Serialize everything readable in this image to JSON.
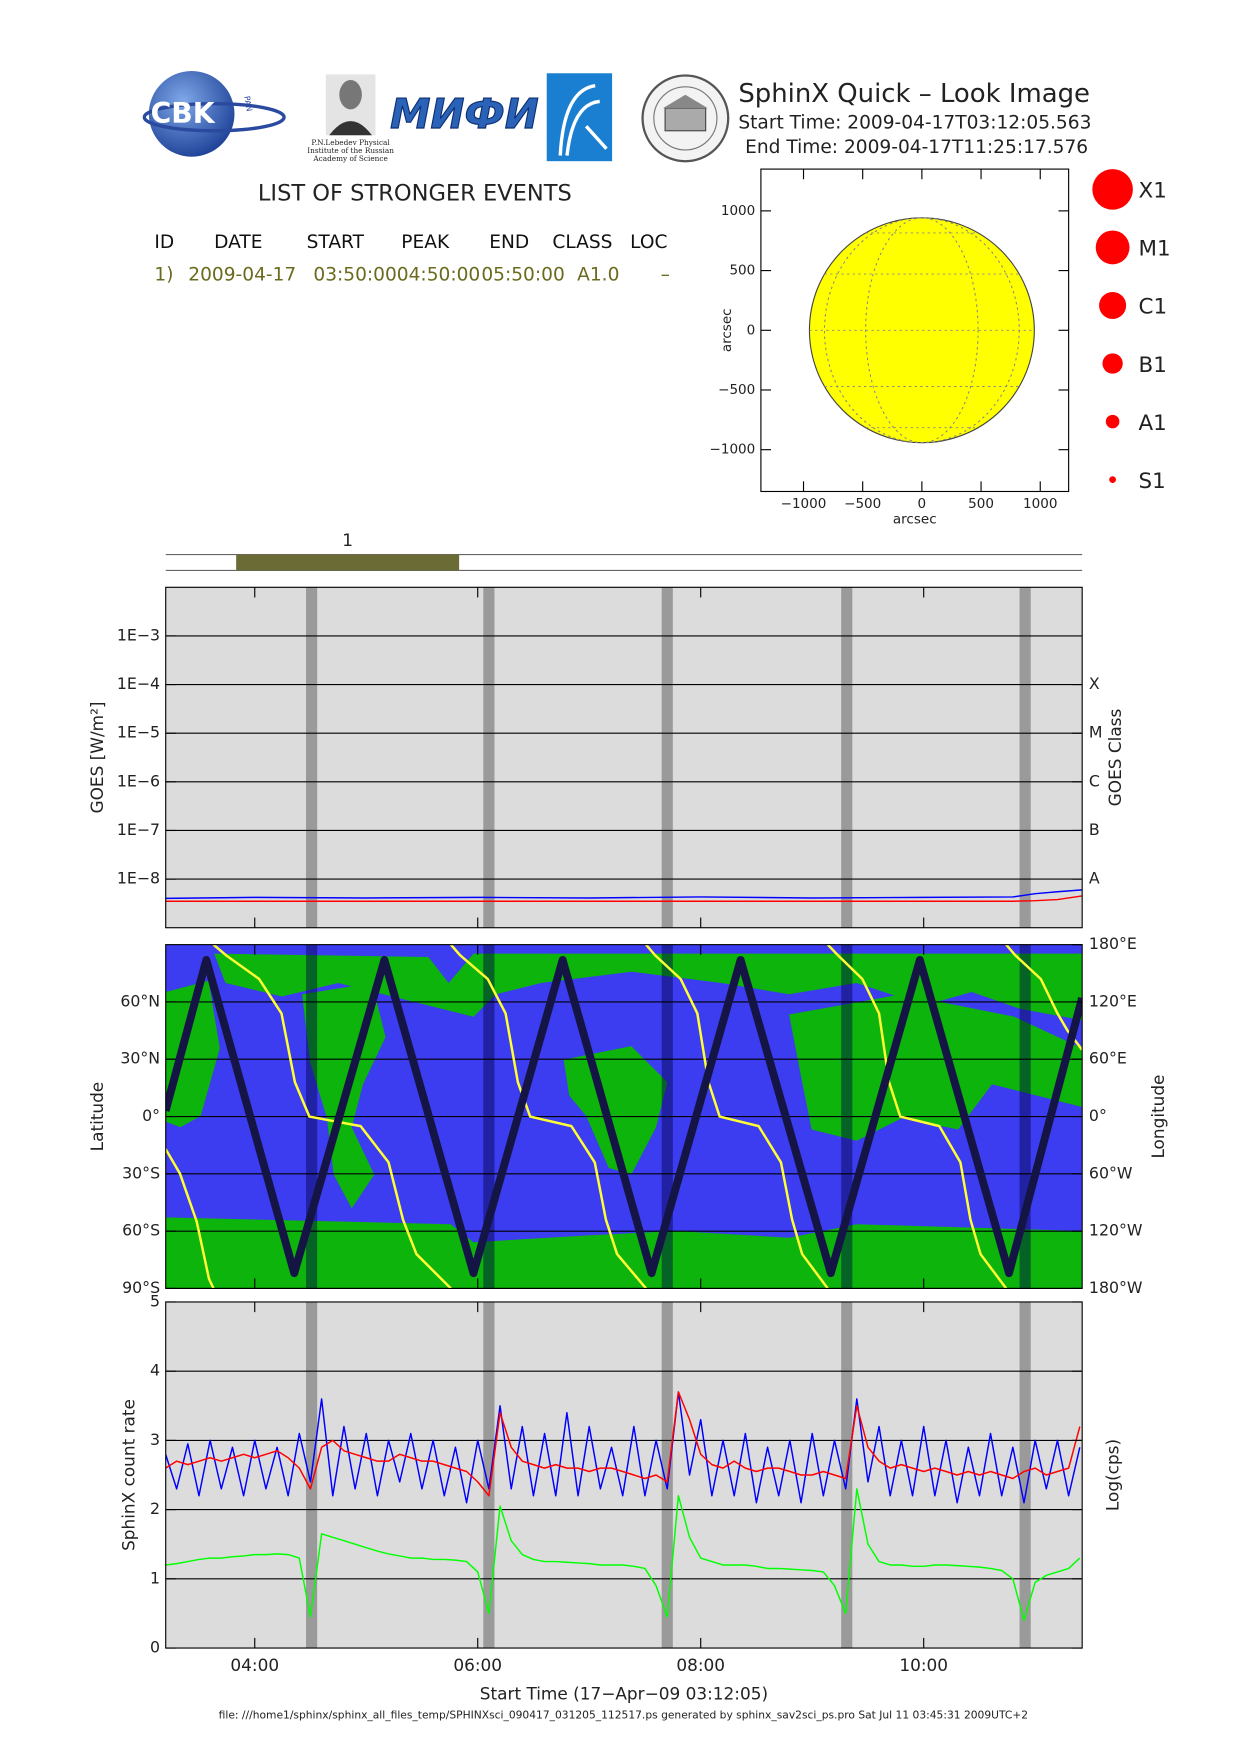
{
  "header": {
    "logo_text": "CBK",
    "logo_sub": "PAN",
    "lebedev_lines": [
      "P.N.Lebedev Physical",
      "Institute of the Russian",
      "Academy of Science"
    ],
    "mifi": "МИФИ",
    "title": "SphinX Quick – Look Image",
    "start_time": "Start Time: 2009-04-17T03:12:05.563",
    "end_time": "End Time: 2009-04-17T11:25:17.576"
  },
  "events": {
    "title": "LIST OF STRONGER EVENTS",
    "columns": [
      "ID",
      "DATE",
      "START",
      "PEAK",
      "END",
      "CLASS",
      "LOC"
    ],
    "rows": [
      [
        "1)",
        "2009-04-17",
        "03:50:00",
        "04:50:00",
        "05:50:00",
        "A1.0",
        "–"
      ]
    ],
    "bar_labels": [
      "1"
    ]
  },
  "class_legend": [
    "X1",
    "M1",
    "C1",
    "B1",
    "A1",
    "S1"
  ],
  "eclipse_intervals": [
    [
      4.46,
      4.56
    ],
    [
      6.05,
      6.15
    ],
    [
      7.65,
      7.75
    ],
    [
      9.26,
      9.36
    ],
    [
      10.86,
      10.96
    ]
  ],
  "chart_data": [
    {
      "type": "disk",
      "xlabel": "arcsec",
      "ylabel": "arcsec",
      "xlim": [
        -1360,
        1240
      ],
      "ylim": [
        -1350,
        1350
      ],
      "xticks": [
        {
          "value": -1000,
          "label": "−1000"
        },
        {
          "value": -500,
          "label": "−500"
        },
        0,
        500,
        1000
      ],
      "yticks": [
        {
          "value": -1000,
          "label": "−1000"
        },
        {
          "value": -500,
          "label": "−500"
        },
        0,
        500,
        1000
      ],
      "radius": 950,
      "color": "#ffff00"
    },
    {
      "type": "line",
      "ylog": true,
      "y2log": true,
      "grid": true,
      "ylabel": "GOES [W/m²]",
      "y2label": "GOES Class",
      "xlim": [
        3.2015,
        11.4215
      ],
      "ylim": [
        1e-09,
        0.01
      ],
      "y2lim": [
        1e-09,
        0.01
      ],
      "yticks": [
        {
          "value": 1e-08,
          "label": "1E−8"
        },
        {
          "value": 1e-07,
          "label": "1E−7"
        },
        {
          "value": 1e-06,
          "label": "1E−6"
        },
        {
          "value": 1e-05,
          "label": "1E−5"
        },
        {
          "value": 0.0001,
          "label": "1E−4"
        },
        {
          "value": 0.001,
          "label": "1E−3"
        }
      ],
      "y2ticks": [
        {
          "value": 1e-08,
          "label": "A"
        },
        {
          "value": 1e-07,
          "label": "B"
        },
        {
          "value": 1e-06,
          "label": "C"
        },
        {
          "value": 1e-05,
          "label": "M"
        },
        {
          "value": 0.0001,
          "label": "X"
        }
      ],
      "series": [
        {
          "color": "#0000ff",
          "x": [
            3.2,
            4.0,
            5.0,
            6.0,
            7.0,
            8.0,
            9.0,
            10.0,
            10.8,
            11.0,
            11.2,
            11.42
          ],
          "values": [
            4e-09,
            4.2e-09,
            4.1e-09,
            4.2e-09,
            4.1e-09,
            4.3e-09,
            4.1e-09,
            4.2e-09,
            4.3e-09,
            5e-09,
            5.5e-09,
            6e-09
          ]
        },
        {
          "color": "#ff0000",
          "x": [
            3.2,
            4.0,
            5.0,
            6.0,
            7.0,
            8.0,
            9.0,
            10.0,
            10.8,
            11.0,
            11.2,
            11.42
          ],
          "values": [
            3.5e-09,
            3.5e-09,
            3.5e-09,
            3.5e-09,
            3.5e-09,
            3.5e-09,
            3.5e-09,
            3.5e-09,
            3.5e-09,
            3.6e-09,
            3.8e-09,
            4.5e-09
          ]
        }
      ]
    },
    {
      "type": "map",
      "grid": true,
      "ylabel": "Latitude",
      "y2label": "Longitude",
      "xlim": [
        3.2015,
        11.4215
      ],
      "ylim": [
        -90,
        90
      ],
      "y2lim": [
        -180,
        180
      ],
      "yticks": [
        {
          "value": -90,
          "label": "90°S"
        },
        {
          "value": -60,
          "label": "60°S"
        },
        {
          "value": -30,
          "label": "30°S"
        },
        {
          "value": 0,
          "label": "0°"
        },
        {
          "value": 30,
          "label": "30°N"
        },
        {
          "value": 60,
          "label": "60°N"
        }
      ],
      "y2ticks": [
        {
          "value": -180,
          "label": "180°W"
        },
        {
          "value": -120,
          "label": "120°W"
        },
        {
          "value": -60,
          "label": "60°W"
        },
        {
          "value": 0,
          "label": "0°"
        },
        {
          "value": 60,
          "label": "60°E"
        },
        {
          "value": 120,
          "label": "120°E"
        },
        {
          "value": 180,
          "label": "180°E"
        }
      ],
      "series": [
        {
          "color": "#ffff33",
          "axis": "y2",
          "x": [
            3.2,
            3.33,
            3.48,
            3.59,
            3.63,
            3.63,
            3.63,
            3.74,
            4.04,
            4.24,
            4.36,
            4.49,
            4.95,
            5.2,
            5.33,
            5.45,
            5.76,
            5.76,
            5.76,
            5.84,
            6.09,
            6.25,
            6.36,
            6.47,
            6.84,
            7.05,
            7.15,
            7.25,
            7.51,
            7.51,
            7.51,
            7.59,
            7.82,
            7.97,
            8.07,
            8.17,
            8.52,
            8.72,
            8.82,
            8.91,
            9.14,
            9.14,
            9.14,
            9.23,
            9.45,
            9.6,
            9.69,
            9.79,
            10.14,
            10.33,
            10.42,
            10.51,
            10.74,
            10.74,
            10.74,
            10.82,
            11.05,
            11.2,
            11.29,
            11.42
          ],
          "values": [
            -34,
            -60,
            -110,
            -170,
            -180,
            null,
            180,
            169,
            144,
            108,
            36,
            0,
            -10,
            -48,
            -108,
            -144,
            -180,
            null,
            180,
            169,
            144,
            108,
            36,
            0,
            -10,
            -48,
            -108,
            -144,
            -180,
            null,
            180,
            169,
            144,
            108,
            36,
            0,
            -10,
            -48,
            -108,
            -144,
            -180,
            null,
            180,
            169,
            144,
            108,
            36,
            0,
            -10,
            -48,
            -108,
            -144,
            -180,
            null,
            180,
            169,
            144,
            108,
            90,
            70
          ]
        },
        {
          "color": "#151545",
          "x": [
            3.2,
            3.565,
            4.354,
            5.163,
            5.962,
            6.761,
            7.559,
            8.358,
            9.167,
            9.966,
            10.765,
            11.42
          ],
          "values": [
            3,
            82,
            -82,
            82,
            -82,
            82,
            -82,
            82,
            -82,
            82,
            -82,
            62
          ]
        }
      ]
    },
    {
      "type": "line",
      "grid": true,
      "ylabel": "SphinX count rate",
      "y2label": "Log(cps)",
      "xlabel": "Start Time (17−Apr−09 03:12:05)",
      "xlim": [
        3.2015,
        11.4215
      ],
      "ylim": [
        0,
        5
      ],
      "xticks": [
        {
          "value": 4,
          "label": "04:00"
        },
        {
          "value": 6,
          "label": "06:00"
        },
        {
          "value": 8,
          "label": "08:00"
        },
        {
          "value": 10,
          "label": "10:00"
        }
      ],
      "yticks": [
        0,
        1,
        2,
        3,
        4,
        5
      ],
      "series": [
        {
          "color": "#00ff00",
          "x": [
            3.2,
            3.3,
            3.4,
            3.5,
            3.6,
            3.7,
            3.8,
            3.9,
            4.0,
            4.1,
            4.2,
            4.3,
            4.4,
            4.5,
            4.6,
            4.7,
            4.8,
            4.9,
            5.0,
            5.1,
            5.2,
            5.3,
            5.4,
            5.5,
            5.6,
            5.7,
            5.8,
            5.9,
            6.0,
            6.1,
            6.2,
            6.3,
            6.4,
            6.5,
            6.6,
            6.7,
            6.8,
            6.9,
            7.0,
            7.1,
            7.2,
            7.3,
            7.4,
            7.5,
            7.6,
            7.7,
            7.8,
            7.9,
            8.0,
            8.1,
            8.2,
            8.3,
            8.4,
            8.5,
            8.6,
            8.7,
            8.8,
            8.9,
            9.0,
            9.1,
            9.2,
            9.3,
            9.4,
            9.5,
            9.6,
            9.7,
            9.8,
            9.9,
            10.0,
            10.1,
            10.2,
            10.3,
            10.4,
            10.5,
            10.6,
            10.7,
            10.8,
            10.9,
            11.0,
            11.1,
            11.2,
            11.3,
            11.4
          ],
          "values": [
            1.2,
            1.22,
            1.25,
            1.28,
            1.3,
            1.3,
            1.32,
            1.33,
            1.35,
            1.35,
            1.36,
            1.35,
            1.3,
            0.45,
            1.65,
            1.6,
            1.55,
            1.5,
            1.45,
            1.4,
            1.36,
            1.33,
            1.3,
            1.3,
            1.28,
            1.28,
            1.27,
            1.25,
            1.1,
            0.5,
            2.05,
            1.55,
            1.35,
            1.28,
            1.25,
            1.25,
            1.24,
            1.23,
            1.22,
            1.2,
            1.2,
            1.2,
            1.18,
            1.15,
            0.9,
            0.45,
            2.2,
            1.6,
            1.3,
            1.25,
            1.2,
            1.2,
            1.2,
            1.18,
            1.15,
            1.15,
            1.14,
            1.13,
            1.12,
            1.1,
            0.9,
            0.5,
            2.3,
            1.5,
            1.25,
            1.2,
            1.2,
            1.18,
            1.18,
            1.2,
            1.2,
            1.19,
            1.18,
            1.17,
            1.15,
            1.12,
            1.0,
            0.4,
            0.95,
            1.05,
            1.1,
            1.15,
            1.3
          ]
        },
        {
          "color": "#0000ff",
          "x": [
            3.2,
            3.3,
            3.4,
            3.5,
            3.6,
            3.7,
            3.8,
            3.9,
            4.0,
            4.1,
            4.2,
            4.3,
            4.4,
            4.5,
            4.6,
            4.7,
            4.8,
            4.9,
            5.0,
            5.1,
            5.2,
            5.3,
            5.4,
            5.5,
            5.6,
            5.7,
            5.8,
            5.9,
            6.0,
            6.1,
            6.2,
            6.3,
            6.4,
            6.5,
            6.6,
            6.7,
            6.8,
            6.9,
            7.0,
            7.1,
            7.2,
            7.3,
            7.4,
            7.5,
            7.6,
            7.7,
            7.8,
            7.9,
            8.0,
            8.1,
            8.2,
            8.3,
            8.4,
            8.5,
            8.6,
            8.7,
            8.8,
            8.9,
            9.0,
            9.1,
            9.2,
            9.3,
            9.4,
            9.5,
            9.6,
            9.7,
            9.8,
            9.9,
            10.0,
            10.1,
            10.2,
            10.3,
            10.4,
            10.5,
            10.6,
            10.7,
            10.8,
            10.9,
            11.0,
            11.1,
            11.2,
            11.3,
            11.4
          ],
          "values": [
            2.8,
            2.3,
            2.95,
            2.2,
            3.0,
            2.3,
            2.9,
            2.2,
            3.0,
            2.3,
            2.9,
            2.2,
            3.1,
            2.4,
            3.6,
            2.2,
            3.2,
            2.3,
            3.1,
            2.2,
            3.0,
            2.4,
            3.1,
            2.3,
            3.0,
            2.2,
            2.9,
            2.1,
            3.0,
            2.3,
            3.5,
            2.3,
            3.2,
            2.2,
            3.1,
            2.2,
            3.4,
            2.2,
            3.2,
            2.3,
            2.9,
            2.2,
            3.2,
            2.2,
            3.0,
            2.3,
            3.7,
            2.5,
            3.3,
            2.2,
            3.0,
            2.2,
            3.1,
            2.1,
            2.9,
            2.2,
            3.0,
            2.1,
            3.1,
            2.2,
            3.0,
            2.3,
            3.6,
            2.4,
            3.2,
            2.2,
            3.0,
            2.2,
            3.2,
            2.2,
            3.0,
            2.1,
            2.9,
            2.2,
            3.1,
            2.2,
            2.9,
            2.1,
            3.0,
            2.3,
            3.0,
            2.2,
            2.9
          ]
        },
        {
          "color": "#ff0000",
          "x": [
            3.2,
            3.3,
            3.4,
            3.5,
            3.6,
            3.7,
            3.8,
            3.9,
            4.0,
            4.1,
            4.2,
            4.3,
            4.4,
            4.5,
            4.6,
            4.7,
            4.8,
            4.9,
            5.0,
            5.1,
            5.2,
            5.3,
            5.4,
            5.5,
            5.6,
            5.7,
            5.8,
            5.9,
            6.0,
            6.1,
            6.2,
            6.3,
            6.4,
            6.5,
            6.6,
            6.7,
            6.8,
            6.9,
            7.0,
            7.1,
            7.2,
            7.3,
            7.4,
            7.5,
            7.6,
            7.7,
            7.8,
            7.9,
            8.0,
            8.1,
            8.2,
            8.3,
            8.4,
            8.5,
            8.6,
            8.7,
            8.8,
            8.9,
            9.0,
            9.1,
            9.2,
            9.3,
            9.4,
            9.5,
            9.6,
            9.7,
            9.8,
            9.9,
            10.0,
            10.1,
            10.2,
            10.3,
            10.4,
            10.5,
            10.6,
            10.7,
            10.8,
            10.9,
            11.0,
            11.1,
            11.2,
            11.3,
            11.4
          ],
          "values": [
            2.6,
            2.7,
            2.65,
            2.7,
            2.75,
            2.7,
            2.75,
            2.8,
            2.75,
            2.8,
            2.85,
            2.75,
            2.6,
            2.3,
            2.9,
            3.0,
            2.85,
            2.8,
            2.75,
            2.7,
            2.7,
            2.8,
            2.75,
            2.7,
            2.7,
            2.65,
            2.6,
            2.55,
            2.4,
            2.2,
            3.4,
            2.9,
            2.7,
            2.65,
            2.6,
            2.65,
            2.6,
            2.6,
            2.55,
            2.6,
            2.6,
            2.55,
            2.5,
            2.45,
            2.5,
            2.4,
            3.7,
            3.3,
            2.8,
            2.65,
            2.6,
            2.7,
            2.6,
            2.55,
            2.6,
            2.6,
            2.55,
            2.5,
            2.5,
            2.55,
            2.5,
            2.45,
            3.5,
            2.9,
            2.7,
            2.6,
            2.65,
            2.6,
            2.55,
            2.6,
            2.55,
            2.5,
            2.55,
            2.5,
            2.55,
            2.5,
            2.45,
            2.55,
            2.6,
            2.5,
            2.55,
            2.6,
            3.2
          ]
        }
      ]
    }
  ],
  "footer": "file: ///home1/sphinx/sphinx_all_files_temp/SPHINXsci_090417_031205_112517.ps generated by sphinx_sav2sci_ps.pro Sat Jul 11 03:45:31 2009UTC+2"
}
